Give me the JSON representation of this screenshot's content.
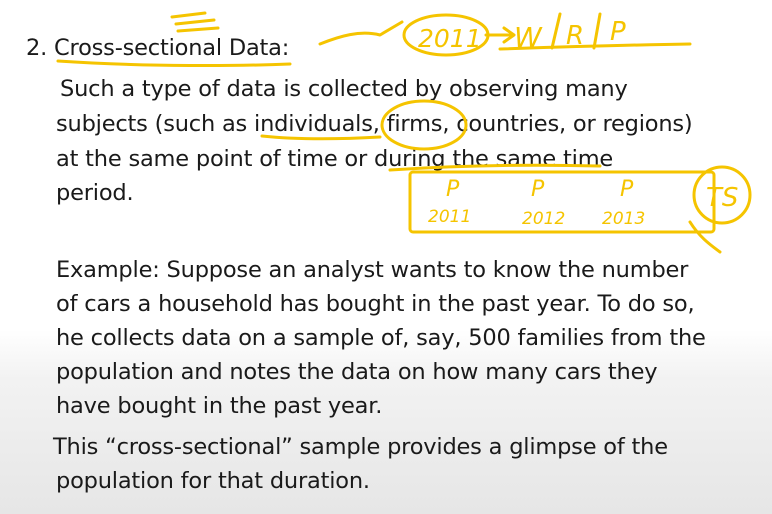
{
  "heading": "2. Cross-sectional Data:",
  "definition": [
    "Such a type of data is collected by observing many",
    "subjects (such as individuals, firms, countries, or regions)",
    "at the same point of time or during the same time",
    "period."
  ],
  "example": [
    "Example: Suppose an analyst wants to know the number",
    "of cars a household has bought in the past year. To do so,",
    "he collects data on a sample of, say, 500 families from the",
    "population and notes the data on how many cars they",
    "have bought in the past year."
  ],
  "conclusion": [
    "This “cross-sectional” sample provides a glimpse of the",
    "population for that duration."
  ],
  "annotations": {
    "color": "#f5c400",
    "top_year": "2011",
    "top_vars": [
      "W",
      "R",
      "P"
    ],
    "box_letters": [
      "P",
      "P",
      "P"
    ],
    "box_years": [
      "2011",
      "2012",
      "2013"
    ],
    "circled": "TS"
  }
}
